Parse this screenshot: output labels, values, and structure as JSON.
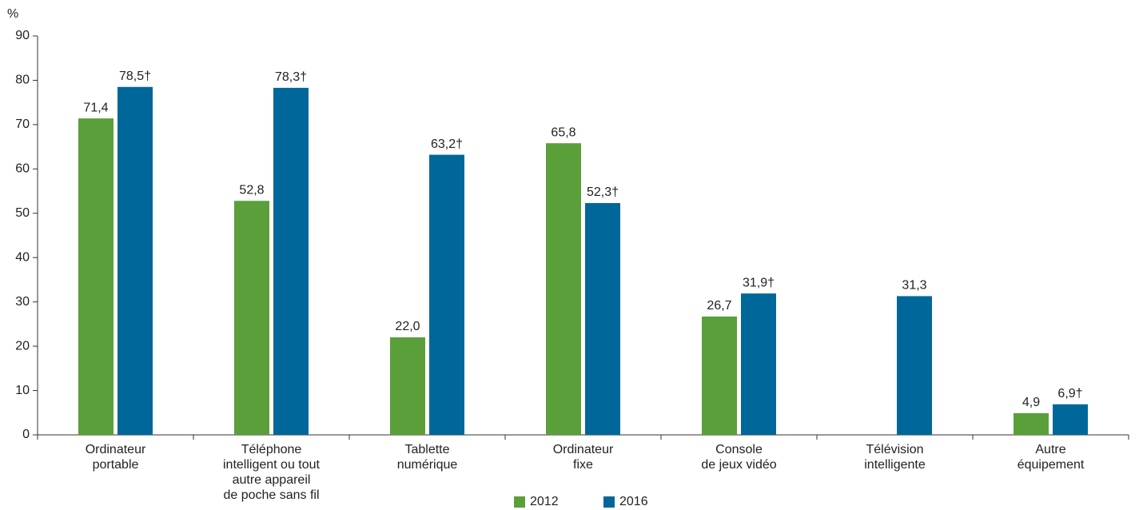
{
  "chart_data": {
    "type": "bar",
    "y_label": "%",
    "categories": [
      "Ordinateur\nportable",
      "Téléphone\nintelligent ou tout\nautre appareil\nde poche sans fil",
      "Tablette\nnumérique",
      "Ordinateur\nfixe",
      "Console\nde jeux vidéo",
      "Télévision\nintelligente",
      "Autre\néquipement"
    ],
    "series": [
      {
        "name": "2012",
        "color": "#5b9f3a",
        "values": [
          71.4,
          52.8,
          22.0,
          65.8,
          26.7,
          null,
          4.9
        ],
        "value_labels": [
          "71,4",
          "52,8",
          "22,0",
          "65,8",
          "26,7",
          null,
          "4,9"
        ]
      },
      {
        "name": "2016",
        "color": "#00679a",
        "values": [
          78.5,
          78.3,
          63.2,
          52.3,
          31.9,
          31.3,
          6.9
        ],
        "value_labels": [
          "78,5†",
          "78,3†",
          "63,2†",
          "52,3†",
          "31,9†",
          "31,3",
          "6,9†"
        ]
      }
    ],
    "ylim": [
      0,
      90
    ],
    "yticks": [
      0,
      10,
      20,
      30,
      40,
      50,
      60,
      70,
      80,
      90
    ],
    "grid": false,
    "legend": "bottom"
  }
}
